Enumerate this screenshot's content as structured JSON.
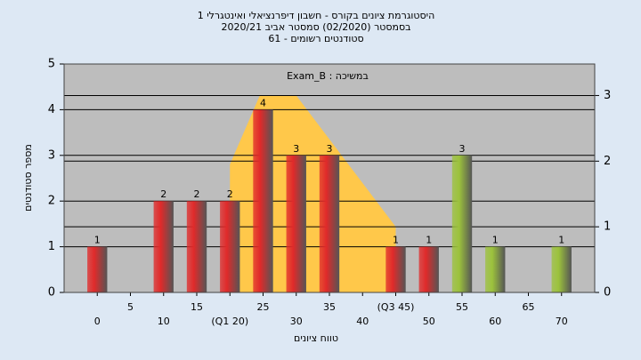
{
  "chart_data": {
    "type": "histogram",
    "title": "היסטוגרמת ציונים בקורס - חשבון דיפרנציאלי ואינטגרלי 1",
    "subtitle": "בסמסטר  (02/2020)  סמסטר אביב 2020/21",
    "subtitle2": "סטודנטים רשומים - 61",
    "annotation": "Exam_B : במשיכה",
    "x_label": "טווח ציונים",
    "y_label": "מספר סטודנטים",
    "x": [
      0,
      5,
      10,
      15,
      20,
      25,
      30,
      35,
      40,
      45,
      50,
      55,
      60,
      65,
      70
    ],
    "values": [
      1,
      0,
      2,
      2,
      2,
      4,
      3,
      3,
      0,
      1,
      1,
      3,
      1,
      0,
      1
    ],
    "colors": [
      "#e02a2a",
      "#e02a2a",
      "#e02a2a",
      "#e02a2a",
      "#e02a2a",
      "#e02a2a",
      "#e02a2a",
      "#e02a2a",
      "#e02a2a",
      "#e02a2a",
      "#e02a2a",
      "#9cc23c",
      "#9cc23c",
      "#9cc23c",
      "#9cc23c"
    ],
    "area": {
      "color": "#ffc84a",
      "axis": "y2",
      "x": [
        20,
        24.5,
        30,
        45
      ],
      "values": [
        1.95,
        3,
        3,
        1
      ]
    },
    "xlim": [
      -5,
      75
    ],
    "xticks": [
      0,
      5,
      10,
      15,
      {
        "value": 20,
        "label": "(Q1 20)"
      },
      25,
      30,
      35,
      40,
      {
        "value": 45,
        "label": "(Q3 45)"
      },
      50,
      55,
      60,
      65,
      70
    ],
    "ylim": [
      0,
      5
    ],
    "yticks": [
      0,
      1,
      2,
      3,
      4,
      5
    ],
    "y2lim": [
      0,
      3.48
    ],
    "y2ticks": [
      0,
      1,
      2,
      3
    ],
    "grid": true
  }
}
